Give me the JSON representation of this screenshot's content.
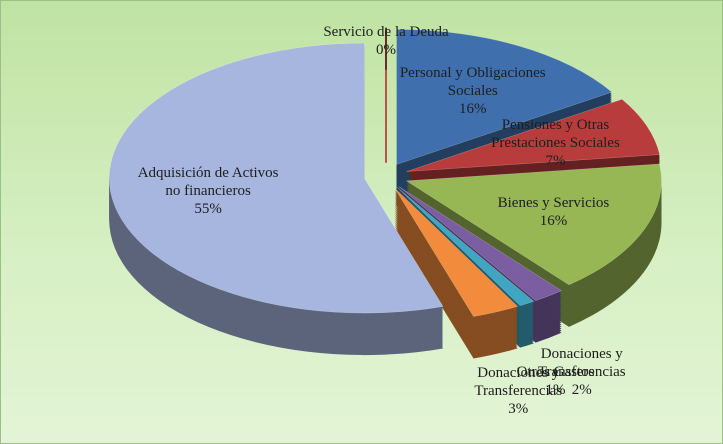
{
  "chart_data": {
    "type": "pie",
    "categories": [
      "Servicio de la Deuda",
      "Personal y Obligaciones Sociales",
      "Pensiones y Otras Prestaciones Sociales",
      "Bienes y Servicios",
      "Donaciones y Transferencias",
      "Otros Gastos",
      "Donaciones y Transferencias",
      "Adquisición de Activos no financieros"
    ],
    "values": [
      0,
      16,
      7,
      16,
      2,
      1,
      3,
      55
    ],
    "value_labels": [
      "0%",
      "16%",
      "7%",
      "16%",
      "2%",
      "1%",
      "3%",
      "55%"
    ],
    "colors": [
      "#c0504d",
      "#3f70ad",
      "#b83c3c",
      "#97b654",
      "#7b5ea2",
      "#3fa5c0",
      "#f28c3c",
      "#a7b6df"
    ]
  }
}
